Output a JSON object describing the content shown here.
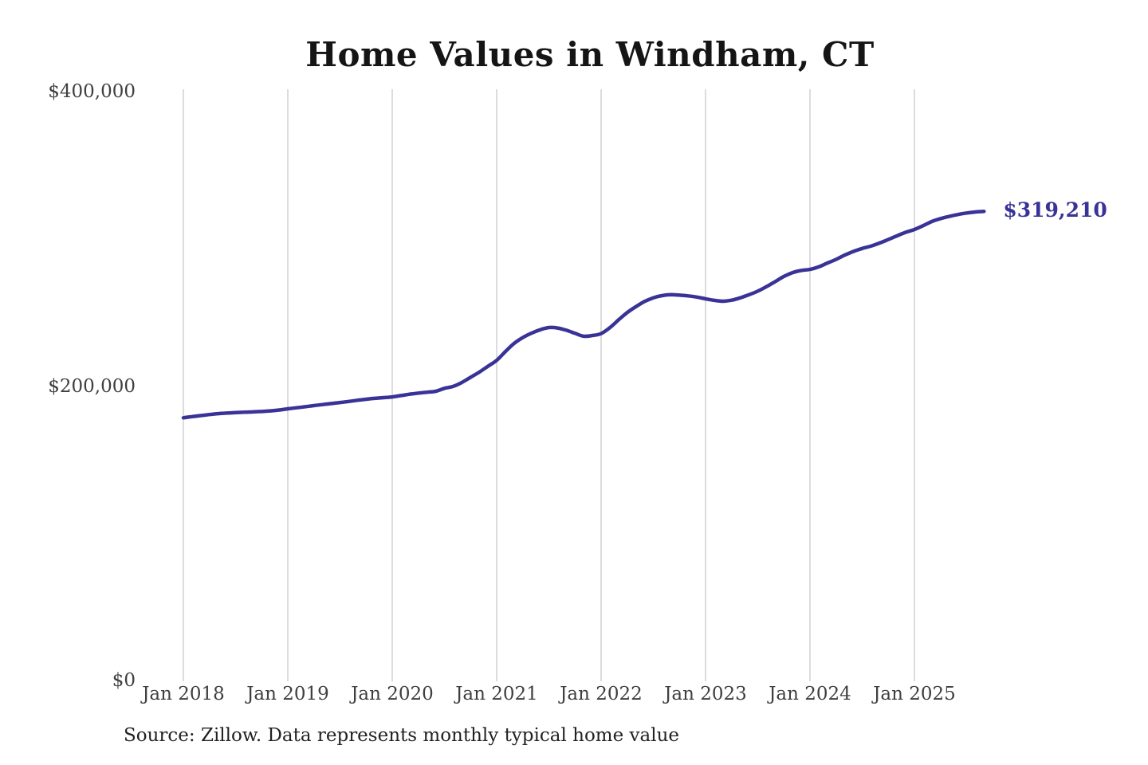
{
  "header": {
    "title": "Home Values in Windham, CT"
  },
  "annotation": {
    "latest_value_label": "$319,210"
  },
  "footer": {
    "source_note": "Source: Zillow. Data represents monthly typical home value"
  },
  "colors": {
    "line": "#3a3397",
    "grid": "#c9c9c9",
    "axis_text": "#3f3f3f",
    "title_text": "#151515"
  },
  "chart_data": {
    "type": "line",
    "title": "Home Values in Windham, CT",
    "xlabel": "",
    "ylabel": "",
    "ylim": [
      0,
      400000
    ],
    "grid": "vertical-only",
    "legend": "none",
    "x_tick_labels": [
      "Jan 2018",
      "Jan 2019",
      "Jan 2020",
      "Jan 2021",
      "Jan 2022",
      "Jan 2023",
      "Jan 2024",
      "Jan 2025"
    ],
    "y_ticks": [
      {
        "value": 0,
        "label": "$0"
      },
      {
        "value": 200000,
        "label": "$200,000"
      },
      {
        "value": 400000,
        "label": "$400,000"
      }
    ],
    "end_label": "$319,210",
    "x": [
      "2018-01",
      "2018-02",
      "2018-03",
      "2018-04",
      "2018-05",
      "2018-06",
      "2018-07",
      "2018-08",
      "2018-09",
      "2018-10",
      "2018-11",
      "2018-12",
      "2019-01",
      "2019-02",
      "2019-03",
      "2019-04",
      "2019-05",
      "2019-06",
      "2019-07",
      "2019-08",
      "2019-09",
      "2019-10",
      "2019-11",
      "2019-12",
      "2020-01",
      "2020-02",
      "2020-03",
      "2020-04",
      "2020-05",
      "2020-06",
      "2020-07",
      "2020-08",
      "2020-09",
      "2020-10",
      "2020-11",
      "2020-12",
      "2021-01",
      "2021-02",
      "2021-03",
      "2021-04",
      "2021-05",
      "2021-06",
      "2021-07",
      "2021-08",
      "2021-09",
      "2021-10",
      "2021-11",
      "2021-12",
      "2022-01",
      "2022-02",
      "2022-03",
      "2022-04",
      "2022-05",
      "2022-06",
      "2022-07",
      "2022-08",
      "2022-09",
      "2022-10",
      "2022-11",
      "2022-12",
      "2023-01",
      "2023-02",
      "2023-03",
      "2023-04",
      "2023-05",
      "2023-06",
      "2023-07",
      "2023-08",
      "2023-09",
      "2023-10",
      "2023-11",
      "2023-12",
      "2024-01",
      "2024-02",
      "2024-03",
      "2024-04",
      "2024-05",
      "2024-06",
      "2024-07",
      "2024-08",
      "2024-09",
      "2024-10",
      "2024-11",
      "2024-12",
      "2025-01",
      "2025-02",
      "2025-03",
      "2025-04",
      "2025-05",
      "2025-06",
      "2025-07",
      "2025-08",
      "2025-09"
    ],
    "series": [
      {
        "name": "Typical home value (USD)",
        "values": [
          179000,
          179800,
          180500,
          181200,
          181800,
          182200,
          182500,
          182800,
          183000,
          183300,
          183700,
          184300,
          185100,
          185800,
          186500,
          187300,
          188000,
          188700,
          189400,
          190100,
          190900,
          191600,
          192200,
          192700,
          193200,
          194100,
          195000,
          195800,
          196400,
          197000,
          199000,
          200300,
          203000,
          206500,
          210000,
          214000,
          218000,
          224000,
          229500,
          233500,
          236500,
          238800,
          240300,
          240000,
          238500,
          236400,
          234400,
          234900,
          236200,
          240200,
          245500,
          250500,
          254500,
          258000,
          260500,
          262000,
          262600,
          262300,
          261800,
          261000,
          259800,
          258800,
          258200,
          258900,
          260500,
          262600,
          265000,
          268100,
          271500,
          275000,
          277600,
          279100,
          279800,
          281500,
          284100,
          286600,
          289500,
          292000,
          294000,
          295600,
          297700,
          300100,
          302600,
          305000,
          306900,
          309500,
          312300,
          314300,
          315800,
          317100,
          318100,
          318800,
          319210
        ]
      }
    ]
  }
}
